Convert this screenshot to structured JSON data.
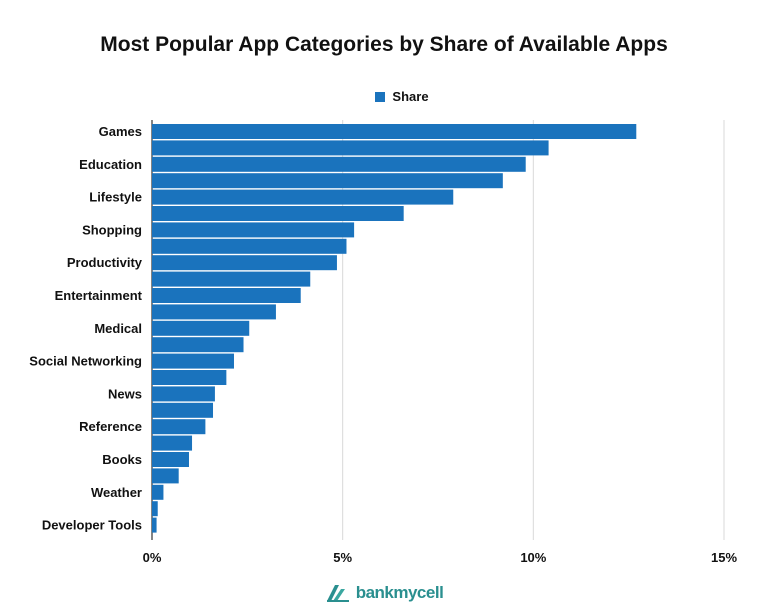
{
  "chart_data": {
    "type": "bar",
    "orientation": "horizontal",
    "title": "Most Popular App Categories by Share of Available Apps",
    "legend": {
      "position": "top",
      "entries": [
        "Share"
      ]
    },
    "series": [
      {
        "name": "Share",
        "color": "#1a73bd",
        "values": [
          12.7,
          10.4,
          9.8,
          9.2,
          7.9,
          6.6,
          5.3,
          5.1,
          4.85,
          4.15,
          3.9,
          3.25,
          2.55,
          2.4,
          2.15,
          1.95,
          1.65,
          1.6,
          1.4,
          1.05,
          0.97,
          0.7,
          0.3,
          0.15,
          0.12
        ]
      }
    ],
    "labeled_categories": [
      "Games",
      "Education",
      "Lifestyle",
      "Shopping",
      "Productivity",
      "Entertainment",
      "Medical",
      "Social Networking",
      "News",
      "Reference",
      "Books",
      "Weather",
      "Developer Tools"
    ],
    "xlim": [
      0,
      15
    ],
    "x_ticks": [
      "0%",
      "5%",
      "10%",
      "15%"
    ],
    "x_tick_values": [
      0,
      5,
      10,
      15
    ],
    "grid": true
  },
  "brand": {
    "name": "bankmycell",
    "color": "#2a8f8f"
  }
}
